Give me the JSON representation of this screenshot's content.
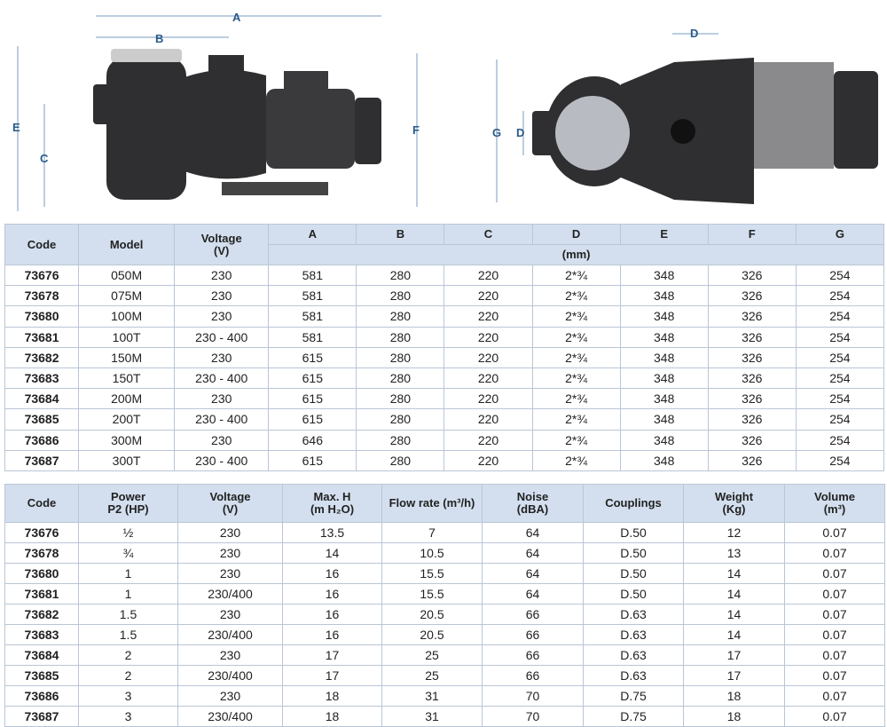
{
  "figures": {
    "side_labels": [
      "A",
      "B",
      "C",
      "E",
      "F"
    ],
    "top_labels": [
      "D",
      "G",
      "D"
    ]
  },
  "table1": {
    "headers": {
      "code": "Code",
      "model": "Model",
      "voltage": "Voltage\n(V)",
      "dims": [
        "A",
        "B",
        "C",
        "D",
        "E",
        "F",
        "G"
      ],
      "unit": "(mm)"
    },
    "rows": [
      [
        "73676",
        "050M",
        "230",
        "581",
        "280",
        "220",
        "2*¾",
        "348",
        "326",
        "254"
      ],
      [
        "73678",
        "075M",
        "230",
        "581",
        "280",
        "220",
        "2*¾",
        "348",
        "326",
        "254"
      ],
      [
        "73680",
        "100M",
        "230",
        "581",
        "280",
        "220",
        "2*¾",
        "348",
        "326",
        "254"
      ],
      [
        "73681",
        "100T",
        "230 - 400",
        "581",
        "280",
        "220",
        "2*¾",
        "348",
        "326",
        "254"
      ],
      [
        "73682",
        "150M",
        "230",
        "615",
        "280",
        "220",
        "2*¾",
        "348",
        "326",
        "254"
      ],
      [
        "73683",
        "150T",
        "230 - 400",
        "615",
        "280",
        "220",
        "2*¾",
        "348",
        "326",
        "254"
      ],
      [
        "73684",
        "200M",
        "230",
        "615",
        "280",
        "220",
        "2*¾",
        "348",
        "326",
        "254"
      ],
      [
        "73685",
        "200T",
        "230 - 400",
        "615",
        "280",
        "220",
        "2*¾",
        "348",
        "326",
        "254"
      ],
      [
        "73686",
        "300M",
        "230",
        "646",
        "280",
        "220",
        "2*¾",
        "348",
        "326",
        "254"
      ],
      [
        "73687",
        "300T",
        "230 - 400",
        "615",
        "280",
        "220",
        "2*¾",
        "348",
        "326",
        "254"
      ]
    ]
  },
  "table2": {
    "headers": [
      "Code",
      "Power\nP2 (HP)",
      "Voltage\n(V)",
      "Max. H\n(m H₂O)",
      "Flow rate (m³/h)",
      "Noise\n(dBA)",
      "Couplings",
      "Weight\n(Kg)",
      "Volume\n(m³)"
    ],
    "rows": [
      [
        "73676",
        "½",
        "230",
        "13.5",
        "7",
        "64",
        "D.50",
        "12",
        "0.07"
      ],
      [
        "73678",
        "¾",
        "230",
        "14",
        "10.5",
        "64",
        "D.50",
        "13",
        "0.07"
      ],
      [
        "73680",
        "1",
        "230",
        "16",
        "15.5",
        "64",
        "D.50",
        "14",
        "0.07"
      ],
      [
        "73681",
        "1",
        "230/400",
        "16",
        "15.5",
        "64",
        "D.50",
        "14",
        "0.07"
      ],
      [
        "73682",
        "1.5",
        "230",
        "16",
        "20.5",
        "66",
        "D.63",
        "14",
        "0.07"
      ],
      [
        "73683",
        "1.5",
        "230/400",
        "16",
        "20.5",
        "66",
        "D.63",
        "14",
        "0.07"
      ],
      [
        "73684",
        "2",
        "230",
        "17",
        "25",
        "66",
        "D.63",
        "17",
        "0.07"
      ],
      [
        "73685",
        "2",
        "230/400",
        "17",
        "25",
        "66",
        "D.63",
        "17",
        "0.07"
      ],
      [
        "73686",
        "3",
        "230",
        "18",
        "31",
        "70",
        "D.75",
        "18",
        "0.07"
      ],
      [
        "73687",
        "3",
        "230/400",
        "18",
        "31",
        "70",
        "D.75",
        "18",
        "0.07"
      ]
    ]
  }
}
